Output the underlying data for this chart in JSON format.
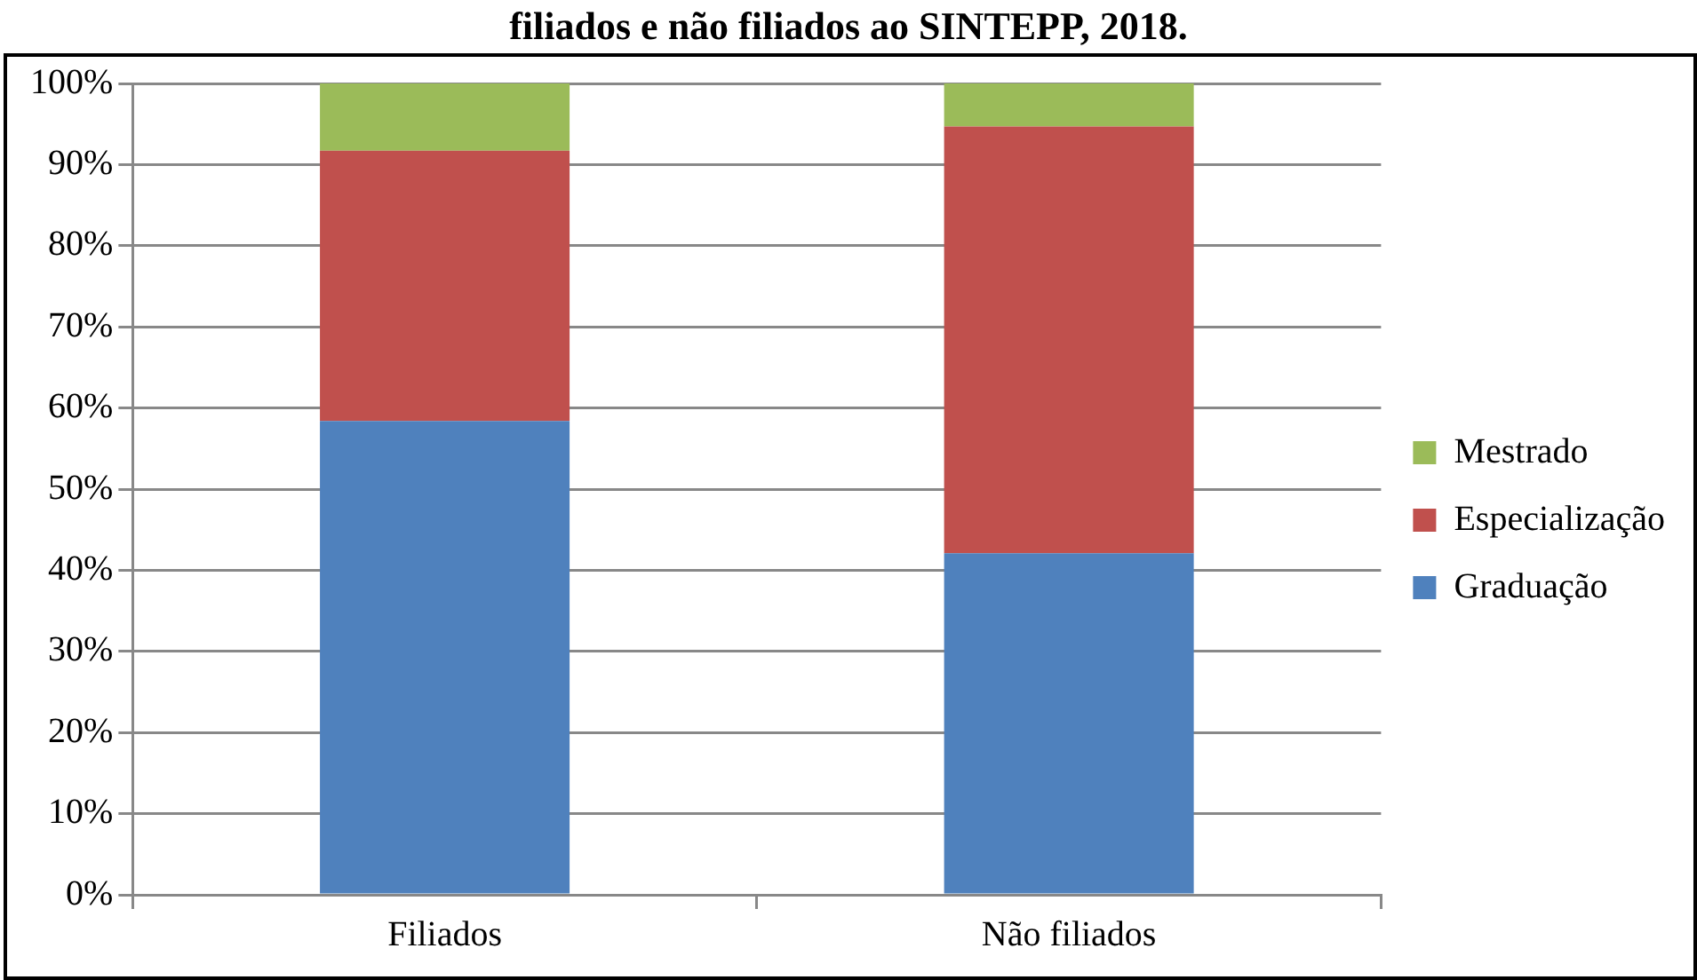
{
  "chart_data": {
    "type": "bar",
    "title": "filiados e não filiados ao SINTEPP, 2018.",
    "categories": [
      "Filiados",
      "Não filiados"
    ],
    "series": [
      {
        "name": "Graduação",
        "color": "#4f81bd",
        "values": [
          58.4,
          42.1
        ]
      },
      {
        "name": "Especialização",
        "color": "#c0504d",
        "values": [
          33.3,
          52.6
        ]
      },
      {
        "name": "Mestrado",
        "color": "#9bbb59",
        "values": [
          8.3,
          5.3
        ]
      }
    ],
    "stacked": true,
    "ylim": [
      0,
      100
    ],
    "yticks": [
      {
        "value": 0,
        "label": "0%"
      },
      {
        "value": 10,
        "label": "10%"
      },
      {
        "value": 20,
        "label": "20%"
      },
      {
        "value": 30,
        "label": "30%"
      },
      {
        "value": 40,
        "label": "40%"
      },
      {
        "value": 50,
        "label": "50%"
      },
      {
        "value": 60,
        "label": "60%"
      },
      {
        "value": 70,
        "label": "70%"
      },
      {
        "value": 80,
        "label": "80%"
      },
      {
        "value": 90,
        "label": "90%"
      },
      {
        "value": 100,
        "label": "100%"
      }
    ],
    "grid": "y",
    "legend": "right"
  }
}
